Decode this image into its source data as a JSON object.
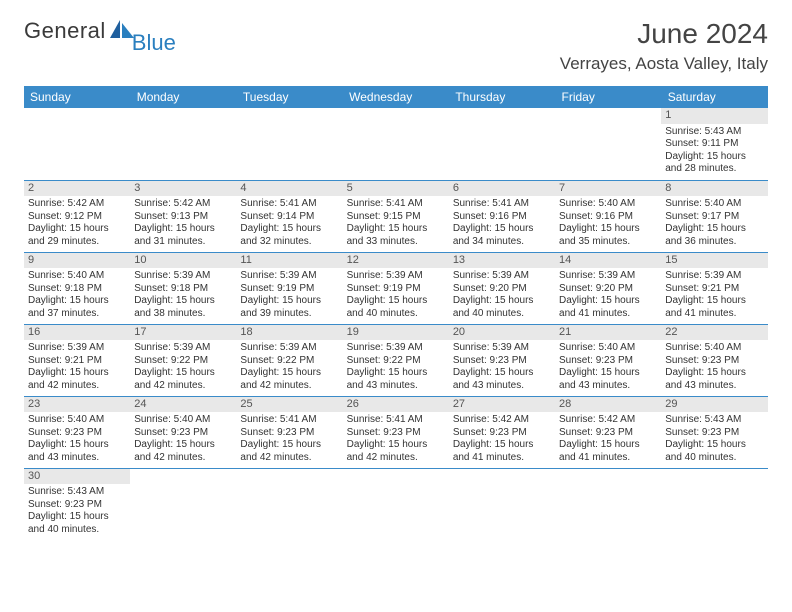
{
  "logo": {
    "text1": "General",
    "text2": "Blue"
  },
  "title": "June 2024",
  "location": "Verrayes, Aosta Valley, Italy",
  "colors": {
    "header_bg": "#3a8bc9",
    "header_text": "#ffffff",
    "daynum_bg": "#e8e8e8",
    "border": "#3a8bc9",
    "logo_blue": "#2a7fbf"
  },
  "day_headers": [
    "Sunday",
    "Monday",
    "Tuesday",
    "Wednesday",
    "Thursday",
    "Friday",
    "Saturday"
  ],
  "weeks": [
    [
      {
        "num": "",
        "lines": [
          "",
          "",
          "",
          ""
        ]
      },
      {
        "num": "",
        "lines": [
          "",
          "",
          "",
          ""
        ]
      },
      {
        "num": "",
        "lines": [
          "",
          "",
          "",
          ""
        ]
      },
      {
        "num": "",
        "lines": [
          "",
          "",
          "",
          ""
        ]
      },
      {
        "num": "",
        "lines": [
          "",
          "",
          "",
          ""
        ]
      },
      {
        "num": "",
        "lines": [
          "",
          "",
          "",
          ""
        ]
      },
      {
        "num": "1",
        "lines": [
          "Sunrise: 5:43 AM",
          "Sunset: 9:11 PM",
          "Daylight: 15 hours",
          "and 28 minutes."
        ]
      }
    ],
    [
      {
        "num": "2",
        "lines": [
          "Sunrise: 5:42 AM",
          "Sunset: 9:12 PM",
          "Daylight: 15 hours",
          "and 29 minutes."
        ]
      },
      {
        "num": "3",
        "lines": [
          "Sunrise: 5:42 AM",
          "Sunset: 9:13 PM",
          "Daylight: 15 hours",
          "and 31 minutes."
        ]
      },
      {
        "num": "4",
        "lines": [
          "Sunrise: 5:41 AM",
          "Sunset: 9:14 PM",
          "Daylight: 15 hours",
          "and 32 minutes."
        ]
      },
      {
        "num": "5",
        "lines": [
          "Sunrise: 5:41 AM",
          "Sunset: 9:15 PM",
          "Daylight: 15 hours",
          "and 33 minutes."
        ]
      },
      {
        "num": "6",
        "lines": [
          "Sunrise: 5:41 AM",
          "Sunset: 9:16 PM",
          "Daylight: 15 hours",
          "and 34 minutes."
        ]
      },
      {
        "num": "7",
        "lines": [
          "Sunrise: 5:40 AM",
          "Sunset: 9:16 PM",
          "Daylight: 15 hours",
          "and 35 minutes."
        ]
      },
      {
        "num": "8",
        "lines": [
          "Sunrise: 5:40 AM",
          "Sunset: 9:17 PM",
          "Daylight: 15 hours",
          "and 36 minutes."
        ]
      }
    ],
    [
      {
        "num": "9",
        "lines": [
          "Sunrise: 5:40 AM",
          "Sunset: 9:18 PM",
          "Daylight: 15 hours",
          "and 37 minutes."
        ]
      },
      {
        "num": "10",
        "lines": [
          "Sunrise: 5:39 AM",
          "Sunset: 9:18 PM",
          "Daylight: 15 hours",
          "and 38 minutes."
        ]
      },
      {
        "num": "11",
        "lines": [
          "Sunrise: 5:39 AM",
          "Sunset: 9:19 PM",
          "Daylight: 15 hours",
          "and 39 minutes."
        ]
      },
      {
        "num": "12",
        "lines": [
          "Sunrise: 5:39 AM",
          "Sunset: 9:19 PM",
          "Daylight: 15 hours",
          "and 40 minutes."
        ]
      },
      {
        "num": "13",
        "lines": [
          "Sunrise: 5:39 AM",
          "Sunset: 9:20 PM",
          "Daylight: 15 hours",
          "and 40 minutes."
        ]
      },
      {
        "num": "14",
        "lines": [
          "Sunrise: 5:39 AM",
          "Sunset: 9:20 PM",
          "Daylight: 15 hours",
          "and 41 minutes."
        ]
      },
      {
        "num": "15",
        "lines": [
          "Sunrise: 5:39 AM",
          "Sunset: 9:21 PM",
          "Daylight: 15 hours",
          "and 41 minutes."
        ]
      }
    ],
    [
      {
        "num": "16",
        "lines": [
          "Sunrise: 5:39 AM",
          "Sunset: 9:21 PM",
          "Daylight: 15 hours",
          "and 42 minutes."
        ]
      },
      {
        "num": "17",
        "lines": [
          "Sunrise: 5:39 AM",
          "Sunset: 9:22 PM",
          "Daylight: 15 hours",
          "and 42 minutes."
        ]
      },
      {
        "num": "18",
        "lines": [
          "Sunrise: 5:39 AM",
          "Sunset: 9:22 PM",
          "Daylight: 15 hours",
          "and 42 minutes."
        ]
      },
      {
        "num": "19",
        "lines": [
          "Sunrise: 5:39 AM",
          "Sunset: 9:22 PM",
          "Daylight: 15 hours",
          "and 43 minutes."
        ]
      },
      {
        "num": "20",
        "lines": [
          "Sunrise: 5:39 AM",
          "Sunset: 9:23 PM",
          "Daylight: 15 hours",
          "and 43 minutes."
        ]
      },
      {
        "num": "21",
        "lines": [
          "Sunrise: 5:40 AM",
          "Sunset: 9:23 PM",
          "Daylight: 15 hours",
          "and 43 minutes."
        ]
      },
      {
        "num": "22",
        "lines": [
          "Sunrise: 5:40 AM",
          "Sunset: 9:23 PM",
          "Daylight: 15 hours",
          "and 43 minutes."
        ]
      }
    ],
    [
      {
        "num": "23",
        "lines": [
          "Sunrise: 5:40 AM",
          "Sunset: 9:23 PM",
          "Daylight: 15 hours",
          "and 43 minutes."
        ]
      },
      {
        "num": "24",
        "lines": [
          "Sunrise: 5:40 AM",
          "Sunset: 9:23 PM",
          "Daylight: 15 hours",
          "and 42 minutes."
        ]
      },
      {
        "num": "25",
        "lines": [
          "Sunrise: 5:41 AM",
          "Sunset: 9:23 PM",
          "Daylight: 15 hours",
          "and 42 minutes."
        ]
      },
      {
        "num": "26",
        "lines": [
          "Sunrise: 5:41 AM",
          "Sunset: 9:23 PM",
          "Daylight: 15 hours",
          "and 42 minutes."
        ]
      },
      {
        "num": "27",
        "lines": [
          "Sunrise: 5:42 AM",
          "Sunset: 9:23 PM",
          "Daylight: 15 hours",
          "and 41 minutes."
        ]
      },
      {
        "num": "28",
        "lines": [
          "Sunrise: 5:42 AM",
          "Sunset: 9:23 PM",
          "Daylight: 15 hours",
          "and 41 minutes."
        ]
      },
      {
        "num": "29",
        "lines": [
          "Sunrise: 5:43 AM",
          "Sunset: 9:23 PM",
          "Daylight: 15 hours",
          "and 40 minutes."
        ]
      }
    ],
    [
      {
        "num": "30",
        "lines": [
          "Sunrise: 5:43 AM",
          "Sunset: 9:23 PM",
          "Daylight: 15 hours",
          "and 40 minutes."
        ]
      },
      {
        "num": "",
        "lines": [
          "",
          "",
          "",
          ""
        ]
      },
      {
        "num": "",
        "lines": [
          "",
          "",
          "",
          ""
        ]
      },
      {
        "num": "",
        "lines": [
          "",
          "",
          "",
          ""
        ]
      },
      {
        "num": "",
        "lines": [
          "",
          "",
          "",
          ""
        ]
      },
      {
        "num": "",
        "lines": [
          "",
          "",
          "",
          ""
        ]
      },
      {
        "num": "",
        "lines": [
          "",
          "",
          "",
          ""
        ]
      }
    ]
  ]
}
